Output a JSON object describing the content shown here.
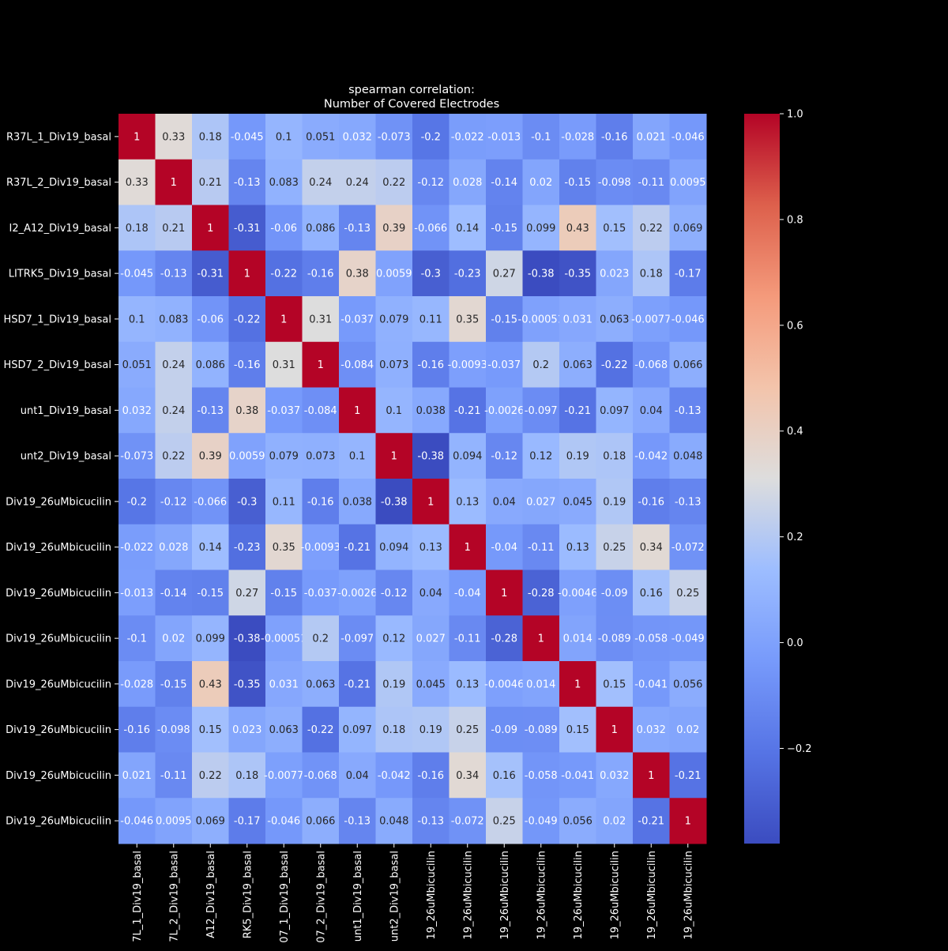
{
  "chart_data": {
    "type": "heatmap",
    "title": "spearman correlation:",
    "subtitle": "Number of Covered Electrodes",
    "row_labels": [
      "R37L_1_Div19_basal",
      "R37L_2_Div19_basal",
      "I2_A12_Div19_basal",
      "LITRK5_Div19_basal",
      "HSD7_1_Div19_basal",
      "HSD7_2_Div19_basal",
      "unt1_Div19_basal",
      "unt2_Div19_basal",
      "Div19_26uMbicucilin",
      "Div19_26uMbicucilin",
      "Div19_26uMbicucilin",
      "Div19_26uMbicucilin",
      "Div19_26uMbicucilin",
      "Div19_26uMbicucilin",
      "Div19_26uMbicucilin",
      "Div19_26uMbicucilin"
    ],
    "col_labels": [
      "7L_1_Div19_basal",
      "7L_2_Div19_basal",
      "A12_Div19_basal",
      "RK5_Div19_basal",
      "07_1_Div19_basal",
      "07_2_Div19_basal",
      "unt1_Div19_basal",
      "unt2_Div19_basal",
      "19_26uMbicucilin",
      "19_26uMbicucilin",
      "19_26uMbicucilin",
      "19_26uMbicucilin",
      "19_26uMbicucilin",
      "19_26uMbicucilin",
      "19_26uMbicucilin",
      "19_26uMbicucilin"
    ],
    "cells": [
      [
        "1",
        "0.33",
        "0.18",
        "-0.045",
        "0.1",
        "0.051",
        "0.032",
        "-0.073",
        "-0.2",
        "-0.022",
        "-0.013",
        "-0.1",
        "-0.028",
        "-0.16",
        "0.021",
        "-0.046"
      ],
      [
        "0.33",
        "1",
        "0.21",
        "-0.13",
        "0.083",
        "0.24",
        "0.24",
        "0.22",
        "-0.12",
        "0.028",
        "-0.14",
        "0.02",
        "-0.15",
        "-0.098",
        "-0.11",
        "0.0095"
      ],
      [
        "0.18",
        "0.21",
        "1",
        "-0.31",
        "-0.06",
        "0.086",
        "-0.13",
        "0.39",
        "-0.066",
        "0.14",
        "-0.15",
        "0.099",
        "0.43",
        "0.15",
        "0.22",
        "0.069"
      ],
      [
        "-0.045",
        "-0.13",
        "-0.31",
        "1",
        "-0.22",
        "-0.16",
        "0.38",
        "0.0059",
        "-0.3",
        "-0.23",
        "0.27",
        "-0.38",
        "-0.35",
        "0.023",
        "0.18",
        "-0.17"
      ],
      [
        "0.1",
        "0.083",
        "-0.06",
        "-0.22",
        "1",
        "0.31",
        "-0.037",
        "0.079",
        "0.11",
        "0.35",
        "-0.15",
        "-0.00051",
        "0.031",
        "0.063",
        "-0.0077",
        "-0.046"
      ],
      [
        "0.051",
        "0.24",
        "0.086",
        "-0.16",
        "0.31",
        "1",
        "-0.084",
        "0.073",
        "-0.16",
        "-0.0093",
        "-0.037",
        "0.2",
        "0.063",
        "-0.22",
        "-0.068",
        "0.066"
      ],
      [
        "0.032",
        "0.24",
        "-0.13",
        "0.38",
        "-0.037",
        "-0.084",
        "1",
        "0.1",
        "0.038",
        "-0.21",
        "-0.0026",
        "-0.097",
        "-0.21",
        "0.097",
        "0.04",
        "-0.13"
      ],
      [
        "-0.073",
        "0.22",
        "0.39",
        "0.0059",
        "0.079",
        "0.073",
        "0.1",
        "1",
        "-0.38",
        "0.094",
        "-0.12",
        "0.12",
        "0.19",
        "0.18",
        "-0.042",
        "0.048"
      ],
      [
        "-0.2",
        "-0.12",
        "-0.066",
        "-0.3",
        "0.11",
        "-0.16",
        "0.038",
        "-0.38",
        "1",
        "0.13",
        "0.04",
        "0.027",
        "0.045",
        "0.19",
        "-0.16",
        "-0.13"
      ],
      [
        "-0.022",
        "0.028",
        "0.14",
        "-0.23",
        "0.35",
        "-0.0093",
        "-0.21",
        "0.094",
        "0.13",
        "1",
        "-0.04",
        "-0.11",
        "0.13",
        "0.25",
        "0.34",
        "-0.072"
      ],
      [
        "-0.013",
        "-0.14",
        "-0.15",
        "0.27",
        "-0.15",
        "-0.037",
        "-0.0026",
        "-0.12",
        "0.04",
        "-0.04",
        "1",
        "-0.28",
        "-0.0046",
        "-0.09",
        "0.16",
        "0.25"
      ],
      [
        "-0.1",
        "0.02",
        "0.099",
        "-0.38",
        "-0.00051",
        "0.2",
        "-0.097",
        "0.12",
        "0.027",
        "-0.11",
        "-0.28",
        "1",
        "0.014",
        "-0.089",
        "-0.058",
        "-0.049"
      ],
      [
        "-0.028",
        "-0.15",
        "0.43",
        "-0.35",
        "0.031",
        "0.063",
        "-0.21",
        "0.19",
        "0.045",
        "0.13",
        "-0.0046",
        "0.014",
        "1",
        "0.15",
        "-0.041",
        "0.056"
      ],
      [
        "-0.16",
        "-0.098",
        "0.15",
        "0.023",
        "0.063",
        "-0.22",
        "0.097",
        "0.18",
        "0.19",
        "0.25",
        "-0.09",
        "-0.089",
        "0.15",
        "1",
        "0.032",
        "0.02"
      ],
      [
        "0.021",
        "-0.11",
        "0.22",
        "0.18",
        "-0.0077",
        "-0.068",
        "0.04",
        "-0.042",
        "-0.16",
        "0.34",
        "0.16",
        "-0.058",
        "-0.041",
        "0.032",
        "1",
        "-0.21"
      ],
      [
        "-0.046",
        "0.0095",
        "0.069",
        "-0.17",
        "-0.046",
        "0.066",
        "-0.13",
        "0.048",
        "-0.13",
        "-0.072",
        "0.25",
        "-0.049",
        "0.056",
        "0.02",
        "-0.21",
        "1"
      ]
    ],
    "colorbar": {
      "vmin": -0.38,
      "vmax": 1.0,
      "ticks": [
        -0.2,
        0.0,
        0.2,
        0.4,
        0.6,
        0.8,
        1.0
      ],
      "tick_labels": [
        "−0.2",
        "0.0",
        "0.2",
        "0.4",
        "0.6",
        "0.8",
        "1.0"
      ]
    },
    "colormap": "coolwarm",
    "colors": {
      "background": "#000000",
      "text": "#ffffff"
    }
  }
}
